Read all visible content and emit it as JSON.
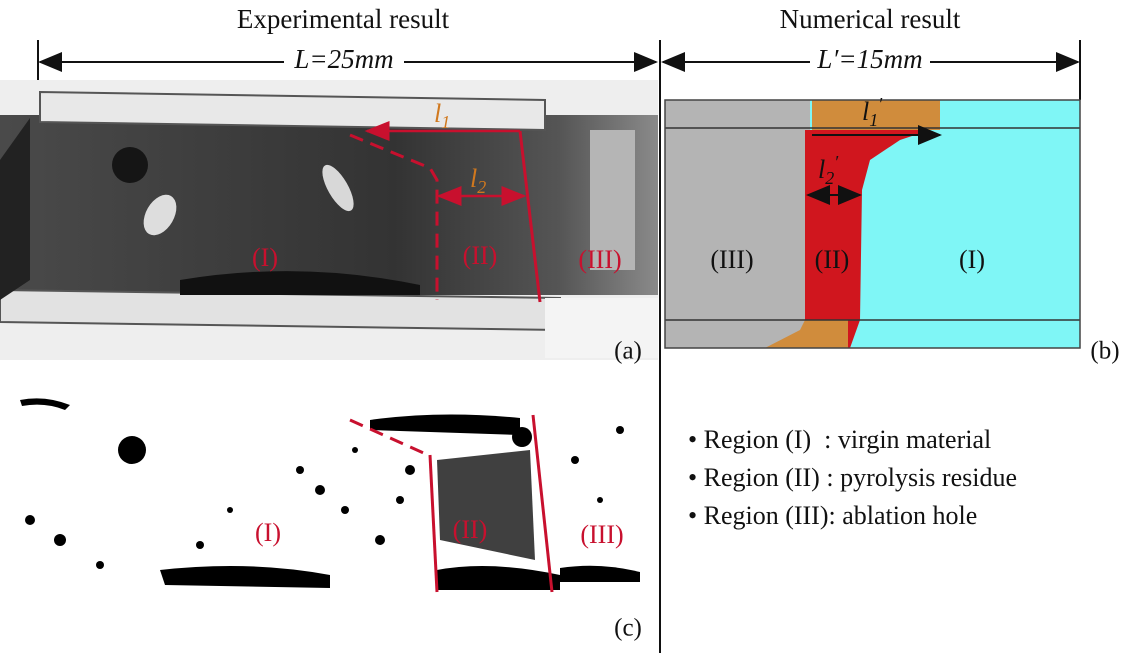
{
  "panels": {
    "a": {
      "title": "Experimental result",
      "dimension": "L=25mm",
      "lengths": [
        {
          "symbol": "l",
          "subscript": "1"
        },
        {
          "symbol": "l",
          "subscript": "2"
        }
      ],
      "regions": [
        "(I)",
        "(II)",
        "(III)"
      ],
      "label": "(a)"
    },
    "b": {
      "title": "Numerical result",
      "dimension": "L′=15mm",
      "lengths": [
        {
          "symbol": "l",
          "subscript": "1",
          "prime": "′"
        },
        {
          "symbol": "l",
          "subscript": "2",
          "prime": "′"
        }
      ],
      "regions": [
        "(III)",
        "(II)",
        "(I)"
      ],
      "label": "(b)"
    },
    "c": {
      "regions": [
        "(I)",
        "(II)",
        "(III)"
      ],
      "label": "(c)"
    }
  },
  "legend": [
    "• Region (I)  : virgin material",
    "• Region (II) : pyrolysis residue",
    "• Region (III): ablation hole"
  ]
}
